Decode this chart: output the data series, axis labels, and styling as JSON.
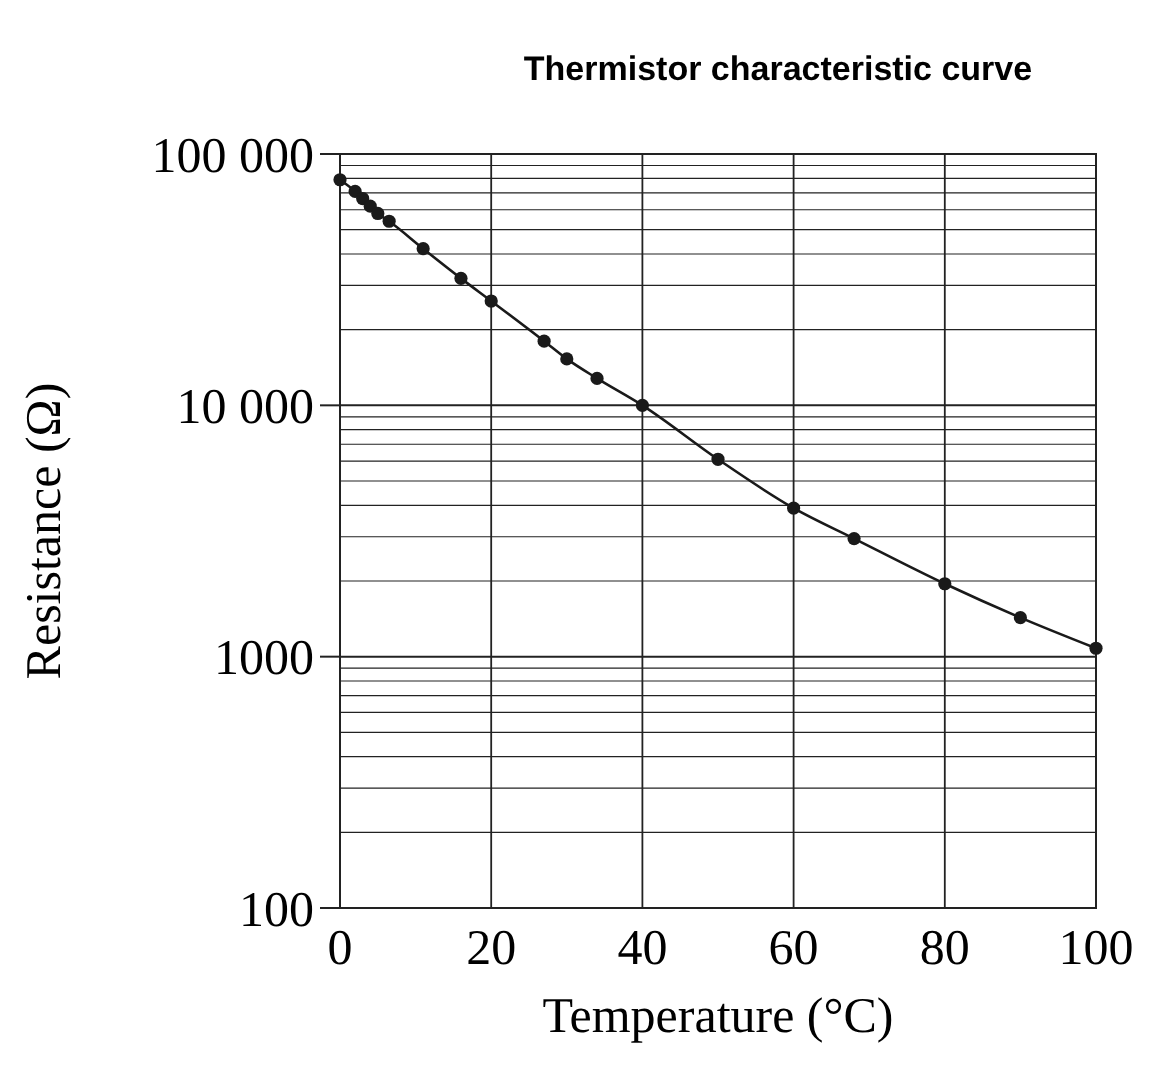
{
  "chart_data": {
    "type": "line",
    "title": "Thermistor characteristic curve",
    "xlabel": "Temperature (°C)",
    "ylabel": "Resistance (Ω)",
    "x": [
      0,
      2,
      3,
      4,
      5,
      6.5,
      11,
      16,
      20,
      27,
      30,
      34,
      40,
      50,
      60,
      68,
      80,
      90,
      100
    ],
    "series": [
      {
        "color": "#1a1a1a",
        "values": [
          79000,
          71000,
          66500,
          62000,
          58000,
          54000,
          42000,
          32000,
          26000,
          18000,
          15300,
          12800,
          10000,
          6100,
          3900,
          2950,
          1950,
          1430,
          1080
        ]
      }
    ],
    "xlim": [
      0,
      100
    ],
    "xticks": [
      0,
      20,
      40,
      60,
      80,
      100
    ],
    "ylim": [
      100,
      100000
    ],
    "log": true,
    "yticks": [
      100,
      {
        "value": 200,
        "label": null
      },
      {
        "value": 300,
        "label": null
      },
      {
        "value": 400,
        "label": null
      },
      {
        "value": 500,
        "label": null
      },
      {
        "value": 600,
        "label": null
      },
      {
        "value": 700,
        "label": null
      },
      {
        "value": 800,
        "label": null
      },
      {
        "value": 900,
        "label": null
      },
      1000,
      {
        "value": 2000,
        "label": null
      },
      {
        "value": 3000,
        "label": null
      },
      {
        "value": 4000,
        "label": null
      },
      {
        "value": 5000,
        "label": null
      },
      {
        "value": 6000,
        "label": null
      },
      {
        "value": 7000,
        "label": null
      },
      {
        "value": 8000,
        "label": null
      },
      {
        "value": 9000,
        "label": null
      },
      {
        "value": 10000,
        "label": "10 000"
      },
      {
        "value": 20000,
        "label": null
      },
      {
        "value": 30000,
        "label": null
      },
      {
        "value": 40000,
        "label": null
      },
      {
        "value": 50000,
        "label": null
      },
      {
        "value": 60000,
        "label": null
      },
      {
        "value": 70000,
        "label": null
      },
      {
        "value": 80000,
        "label": null
      },
      {
        "value": 90000,
        "label": null
      },
      {
        "value": 100000,
        "label": "100 000"
      }
    ],
    "grid": true,
    "marker": "circle",
    "line_style": "solid"
  }
}
